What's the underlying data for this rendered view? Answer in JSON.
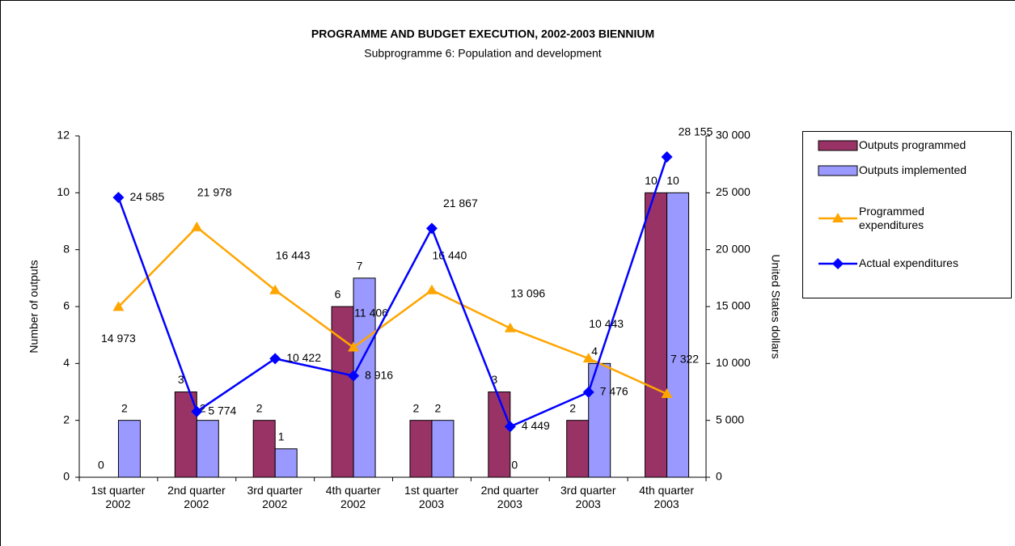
{
  "chart_data": {
    "type": "combo",
    "title": "PROGRAMME AND BUDGET EXECUTION, 2002-2003 BIENNIUM",
    "subtitle": "Subprogramme 6: Population and development",
    "y_label": "Number of outputs",
    "y2_label": "United States dollars",
    "categories": [
      "1st quarter\n2002",
      "2nd quarter\n2002",
      "3rd quarter\n2002",
      "4th quarter\n2002",
      "1st quarter\n2003",
      "2nd quarter\n2003",
      "3rd quarter\n2003",
      "4th quarter\n2003"
    ],
    "ylim": [
      0,
      12
    ],
    "yticks": [
      0,
      2,
      4,
      6,
      8,
      10,
      12
    ],
    "y2lim": [
      0,
      30000
    ],
    "y2ticks": [
      0,
      {
        "value": 5000,
        "label": "5 000"
      },
      {
        "value": 10000,
        "label": "10 000"
      },
      {
        "value": 15000,
        "label": "15 000"
      },
      {
        "value": 20000,
        "label": "20 000"
      },
      {
        "value": 25000,
        "label": "25 000"
      },
      {
        "value": 30000,
        "label": "30 000"
      }
    ],
    "legend": "right",
    "series": [
      {
        "name": "Outputs programmed",
        "type": "bar",
        "color": "#993366",
        "values": [
          0,
          3,
          2,
          6,
          2,
          3,
          2,
          10
        ]
      },
      {
        "name": "Outputs implemented",
        "type": "bar",
        "color": "#9999ff",
        "values": [
          2,
          2,
          1,
          7,
          2,
          0,
          4,
          10
        ]
      },
      {
        "name": "Programmed expenditures",
        "type": "line",
        "marker": "triangle",
        "axis": "y2",
        "color": "#ffa500",
        "values": [
          14973,
          21978,
          16443,
          11406,
          16440,
          13096,
          10443,
          7322
        ],
        "value_labels": [
          "14 973",
          "21 978",
          "16 443",
          "11 406",
          "16 440",
          "13 096",
          "10 443",
          "7 322"
        ]
      },
      {
        "name": "Actual expenditures",
        "type": "line",
        "marker": "diamond",
        "axis": "y2",
        "color": "#0000ff",
        "values": [
          24585,
          5774,
          10422,
          8916,
          21867,
          4449,
          7476,
          28155
        ],
        "value_labels": [
          "24 585",
          "5 774",
          "10 422",
          "8 916",
          "21 867",
          "4 449",
          "7 476",
          "28 155"
        ]
      }
    ]
  }
}
